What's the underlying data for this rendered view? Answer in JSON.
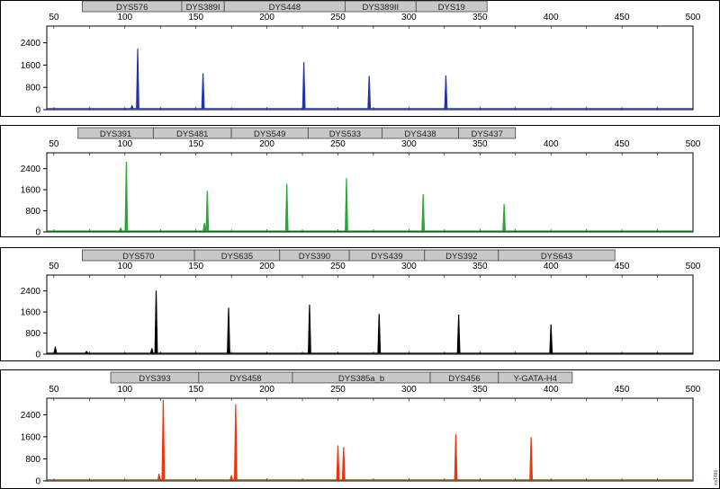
{
  "chart_data": [
    {
      "type": "line",
      "color": "#2233aa",
      "xlim": [
        45,
        500
      ],
      "ylim": [
        0,
        3000
      ],
      "x_ticks": [
        "50",
        "100",
        "150",
        "200",
        "250",
        "300",
        "350",
        "400",
        "450",
        "500"
      ],
      "y_ticks": [
        "0",
        "800",
        "1600",
        "2400"
      ],
      "markers": [
        {
          "label": "DYS576",
          "start": 70,
          "end": 140
        },
        {
          "label": "DYS389I",
          "start": 140,
          "end": 170
        },
        {
          "label": "DYS448",
          "start": 170,
          "end": 255
        },
        {
          "label": "DYS389II",
          "start": 255,
          "end": 305
        },
        {
          "label": "DYS19",
          "start": 305,
          "end": 355
        }
      ],
      "peaks": [
        {
          "x": 105,
          "y": 150
        },
        {
          "x": 109,
          "y": 2180
        },
        {
          "x": 155,
          "y": 1300
        },
        {
          "x": 226,
          "y": 1700
        },
        {
          "x": 272,
          "y": 1200
        },
        {
          "x": 326,
          "y": 1220
        }
      ]
    },
    {
      "type": "line",
      "color": "#22aa33",
      "xlim": [
        45,
        500
      ],
      "ylim": [
        0,
        3000
      ],
      "x_ticks": [
        "50",
        "100",
        "150",
        "200",
        "250",
        "300",
        "350",
        "400",
        "450",
        "500"
      ],
      "y_ticks": [
        "0",
        "800",
        "1600",
        "2400"
      ],
      "markers": [
        {
          "label": "DYS391",
          "start": 67,
          "end": 120
        },
        {
          "label": "DYS481",
          "start": 120,
          "end": 175
        },
        {
          "label": "DYS549",
          "start": 175,
          "end": 229
        },
        {
          "label": "DYS533",
          "start": 229,
          "end": 281
        },
        {
          "label": "DYS438",
          "start": 281,
          "end": 335
        },
        {
          "label": "DYS437",
          "start": 335,
          "end": 375
        }
      ],
      "peaks": [
        {
          "x": 97,
          "y": 150
        },
        {
          "x": 101,
          "y": 2650
        },
        {
          "x": 156,
          "y": 330
        },
        {
          "x": 158,
          "y": 1550
        },
        {
          "x": 214,
          "y": 1820
        },
        {
          "x": 256,
          "y": 2030
        },
        {
          "x": 310,
          "y": 1420
        },
        {
          "x": 367,
          "y": 1050
        }
      ]
    },
    {
      "type": "line",
      "color": "#000000",
      "xlim": [
        45,
        500
      ],
      "ylim": [
        0,
        3000
      ],
      "x_ticks": [
        "50",
        "100",
        "150",
        "200",
        "250",
        "300",
        "350",
        "400",
        "450",
        "500"
      ],
      "y_ticks": [
        "0",
        "800",
        "1600",
        "2400"
      ],
      "markers": [
        {
          "label": "DYS570",
          "start": 70,
          "end": 149
        },
        {
          "label": "DYS635",
          "start": 149,
          "end": 209
        },
        {
          "label": "DYS390",
          "start": 209,
          "end": 258
        },
        {
          "label": "DYS439",
          "start": 258,
          "end": 311
        },
        {
          "label": "DYS392",
          "start": 311,
          "end": 363
        },
        {
          "label": "DYS643",
          "start": 363,
          "end": 445
        }
      ],
      "peaks": [
        {
          "x": 51,
          "y": 280
        },
        {
          "x": 73,
          "y": 110
        },
        {
          "x": 119,
          "y": 220
        },
        {
          "x": 122,
          "y": 2400
        },
        {
          "x": 173,
          "y": 1750
        },
        {
          "x": 230,
          "y": 1870
        },
        {
          "x": 279,
          "y": 1520
        },
        {
          "x": 335,
          "y": 1490
        },
        {
          "x": 400,
          "y": 1120
        }
      ]
    },
    {
      "type": "line",
      "color": "#ee3311",
      "xlim": [
        45,
        500
      ],
      "ylim": [
        0,
        3000
      ],
      "x_ticks": [
        "50",
        "100",
        "150",
        "200",
        "250",
        "300",
        "350",
        "400",
        "450",
        "500"
      ],
      "y_ticks": [
        "0",
        "800",
        "1600",
        "2400"
      ],
      "markers": [
        {
          "label": "DYS393",
          "start": 90,
          "end": 152
        },
        {
          "label": "DYS458",
          "start": 152,
          "end": 218
        },
        {
          "label": "DYS385a_b",
          "start": 218,
          "end": 315
        },
        {
          "label": "DYS456",
          "start": 315,
          "end": 363
        },
        {
          "label": "Y-GATA-H4",
          "start": 363,
          "end": 415
        }
      ],
      "peaks": [
        {
          "x": 124,
          "y": 250
        },
        {
          "x": 127,
          "y": 2930
        },
        {
          "x": 175,
          "y": 200
        },
        {
          "x": 178,
          "y": 2770
        },
        {
          "x": 250,
          "y": 1280
        },
        {
          "x": 254,
          "y": 1220
        },
        {
          "x": 333,
          "y": 1680
        },
        {
          "x": 386,
          "y": 1580
        }
      ]
    }
  ],
  "side_label": "ics1486"
}
